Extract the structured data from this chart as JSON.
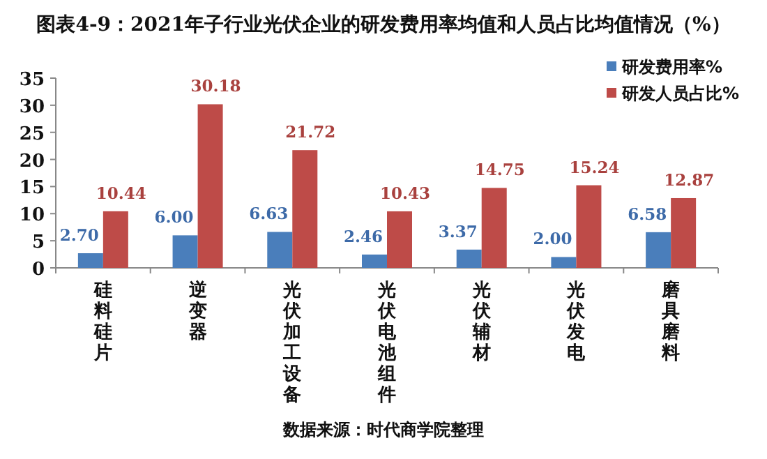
{
  "chart_data": {
    "type": "bar",
    "title": "图表4-9：2021年子行业光伏企业的研发费用率均值和人员占比均值情况（%）",
    "categories": [
      "硅料硅片",
      "逆变器",
      "光伏加工设备",
      "光伏电池组件",
      "光伏辅材",
      "光伏发电",
      "磨具磨料"
    ],
    "series": [
      {
        "name": "研发费用率%",
        "color": "#4a7ebb",
        "values": [
          2.7,
          6.0,
          6.63,
          2.46,
          3.37,
          2.0,
          6.58
        ],
        "value_labels": [
          "2.70",
          "6.00",
          "6.63",
          "2.46",
          "3.37",
          "2.00",
          "6.58"
        ]
      },
      {
        "name": "研发人员占比%",
        "color": "#be4b48",
        "values": [
          10.44,
          30.18,
          21.72,
          10.43,
          14.75,
          15.24,
          12.87
        ],
        "value_labels": [
          "10.44",
          "30.18",
          "21.72",
          "10.43",
          "14.75",
          "15.24",
          "12.87"
        ]
      }
    ],
    "ylim": [
      0,
      35
    ],
    "yticks": [
      0,
      5,
      10,
      15,
      20,
      25,
      30,
      35
    ],
    "grid": false,
    "legend": "top right",
    "annotations": [
      "数据来源：时代商学院整理"
    ]
  }
}
